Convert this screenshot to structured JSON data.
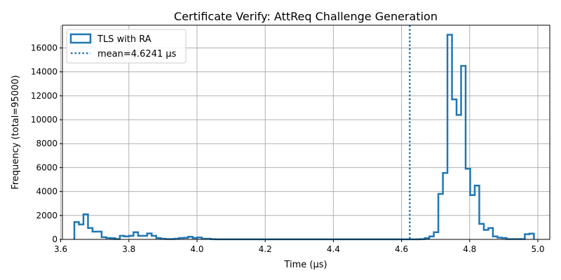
{
  "chart_data": {
    "type": "histogram",
    "title": "Certificate Verify: AttReq Challenge Generation",
    "xlabel": "Time (µs)",
    "ylabel": "Frequency (total=95000)",
    "xlim": [
      3.605,
      5.035
    ],
    "ylim": [
      0,
      17900
    ],
    "x_ticks": [
      3.6,
      3.8,
      4.0,
      4.2,
      4.4,
      4.6,
      4.8,
      5.0
    ],
    "x_tick_labels": [
      "3.6",
      "3.8",
      "4.0",
      "4.2",
      "4.4",
      "4.6",
      "4.8",
      "5.0"
    ],
    "y_ticks": [
      0,
      2000,
      4000,
      6000,
      8000,
      10000,
      12000,
      14000,
      16000
    ],
    "y_tick_labels": [
      "0",
      "2000",
      "4000",
      "6000",
      "8000",
      "10000",
      "12000",
      "14000",
      "16000"
    ],
    "grid": true,
    "legend_position": "top-left",
    "series": [
      {
        "name": "TLS with RA",
        "color": "#1f77b4",
        "bin_start": 3.64,
        "bin_width": 0.01335,
        "values": [
          1450,
          1250,
          2100,
          950,
          650,
          650,
          180,
          120,
          100,
          30,
          300,
          250,
          300,
          600,
          300,
          300,
          500,
          300,
          120,
          60,
          30,
          30,
          60,
          120,
          130,
          220,
          120,
          160,
          60,
          60,
          20,
          10,
          10,
          10,
          10,
          10,
          10,
          10,
          10,
          10,
          10,
          10,
          10,
          10,
          10,
          10,
          10,
          10,
          10,
          10,
          10,
          10,
          10,
          10,
          10,
          10,
          10,
          10,
          10,
          10,
          10,
          10,
          10,
          10,
          10,
          10,
          10,
          10,
          10,
          10,
          10,
          10,
          10,
          10,
          10,
          10,
          20,
          100,
          250,
          600,
          3800,
          5550,
          17100,
          11700,
          10400,
          14500,
          5900,
          3700,
          4500,
          1300,
          800,
          950,
          250,
          150,
          120,
          30,
          30,
          30,
          30,
          430,
          480
        ]
      }
    ],
    "mean_line": {
      "label": "mean=4.6241 µs",
      "x": 4.6241,
      "color": "#1f77b4"
    }
  }
}
